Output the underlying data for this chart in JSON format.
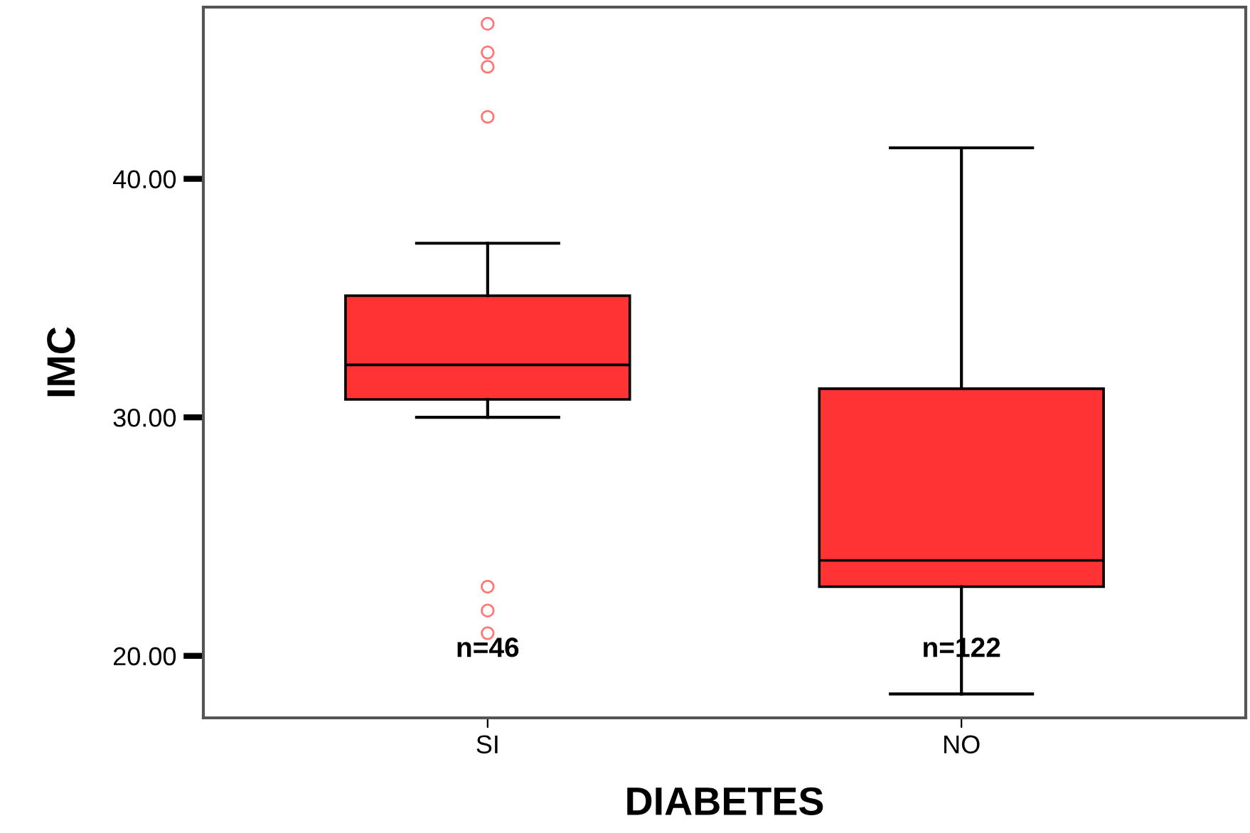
{
  "chart_data": {
    "type": "box",
    "xlabel": "DIABETES",
    "ylabel": "IMC",
    "categories": [
      "SI",
      "NO"
    ],
    "color": "#ff3333",
    "boxes": [
      {
        "low": 30.0,
        "q1": 30.75,
        "median": 32.2,
        "q3": 35.1,
        "high": 37.3,
        "outliers": [
          46.5,
          45.3,
          44.7,
          42.6,
          22.9,
          21.9,
          20.95
        ]
      },
      {
        "low": 18.4,
        "q1": 22.9,
        "median": 24.0,
        "q3": 31.2,
        "high": 41.3
      }
    ],
    "ylim": [
      17.4,
      47.2
    ],
    "yticks": [
      {
        "value": 20,
        "label": "20.00"
      },
      {
        "value": 30,
        "label": "30.00"
      },
      {
        "value": 40,
        "label": "40.00"
      }
    ],
    "grid": false,
    "annotations": [
      "n=46",
      "n=122"
    ]
  }
}
